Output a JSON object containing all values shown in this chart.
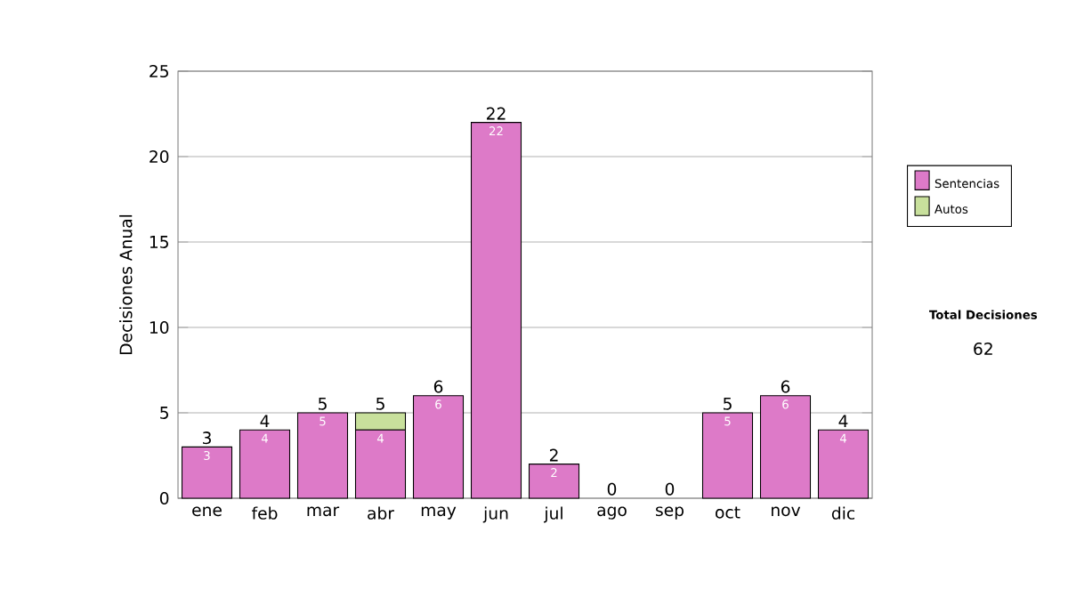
{
  "chart_data": {
    "type": "bar",
    "stacked": true,
    "ylabel": "Decisiones Anual",
    "categories": [
      "ene",
      "feb",
      "mar",
      "abr",
      "may",
      "jun",
      "jul",
      "ago",
      "sep",
      "oct",
      "nov",
      "dic"
    ],
    "series": [
      {
        "name": "Sentencias",
        "color": "#dd7ac8",
        "values": [
          3,
          4,
          5,
          4,
          6,
          22,
          2,
          0,
          0,
          5,
          6,
          4
        ],
        "value_labels": [
          "3",
          "4",
          "5",
          "4",
          "6",
          "22",
          "2",
          null,
          null,
          "5",
          "6",
          "4"
        ]
      },
      {
        "name": "Autos",
        "color": "#c8e09c",
        "values": [
          0,
          0,
          0,
          1,
          0,
          0,
          0,
          0,
          0,
          0,
          0,
          0
        ]
      }
    ],
    "totals": [
      "3",
      "4",
      "5",
      "5",
      "6",
      "22",
      "2",
      "0",
      "0",
      "5",
      "6",
      "4"
    ],
    "ylim": [
      0,
      25
    ],
    "yticks": [
      0,
      5,
      10,
      15,
      20,
      25
    ],
    "grid": "y",
    "legend": "right",
    "annotations": [
      "Total Decisiones",
      "62"
    ]
  }
}
